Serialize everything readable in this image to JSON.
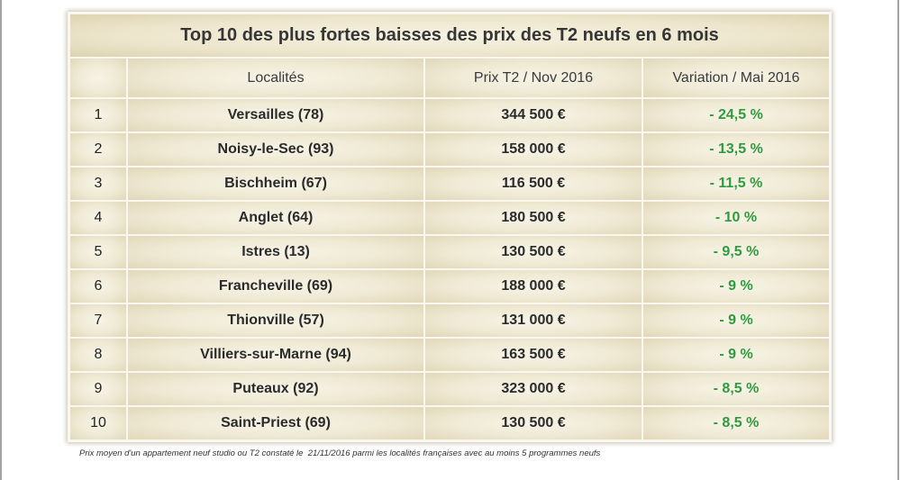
{
  "chart_data": {
    "type": "table",
    "title": "Top 10 des plus fortes baisses des prix des T2 neufs en 6 mois",
    "columns": [
      "",
      "Localités",
      "Prix T2 / Nov 2016",
      "Variation / Mai 2016"
    ],
    "rows": [
      {
        "rank": "1",
        "locality": "Versailles (78)",
        "price": "344 500 €",
        "variation": "- 24,5 %"
      },
      {
        "rank": "2",
        "locality": "Noisy-le-Sec (93)",
        "price": "158 000 €",
        "variation": "- 13,5 %"
      },
      {
        "rank": "3",
        "locality": "Bischheim (67)",
        "price": "116 500 €",
        "variation": "- 11,5 %"
      },
      {
        "rank": "4",
        "locality": "Anglet (64)",
        "price": "180 500 €",
        "variation": "- 10 %"
      },
      {
        "rank": "5",
        "locality": "Istres (13)",
        "price": "130 500 €",
        "variation": "- 9,5 %"
      },
      {
        "rank": "6",
        "locality": "Francheville (69)",
        "price": "188 000 €",
        "variation": "- 9 %"
      },
      {
        "rank": "7",
        "locality": "Thionville (57)",
        "price": "131 000 €",
        "variation": "- 9 %"
      },
      {
        "rank": "8",
        "locality": "Villiers-sur-Marne (94)",
        "price": "163 500 €",
        "variation": "- 9 %"
      },
      {
        "rank": "9",
        "locality": "Puteaux (92)",
        "price": "323 000 €",
        "variation": "- 8,5 %"
      },
      {
        "rank": "10",
        "locality": "Saint-Priest (69)",
        "price": "130 500 €",
        "variation": "- 8,5 %"
      }
    ]
  },
  "footnote": "Prix moyen d'un appartement neuf studio ou T2 constaté le  21/11/2016 parmi les localités françaises avec au moins 5 programmes neufs",
  "colors": {
    "variation": "#2f9b3e",
    "cell": "#efe9d4"
  }
}
